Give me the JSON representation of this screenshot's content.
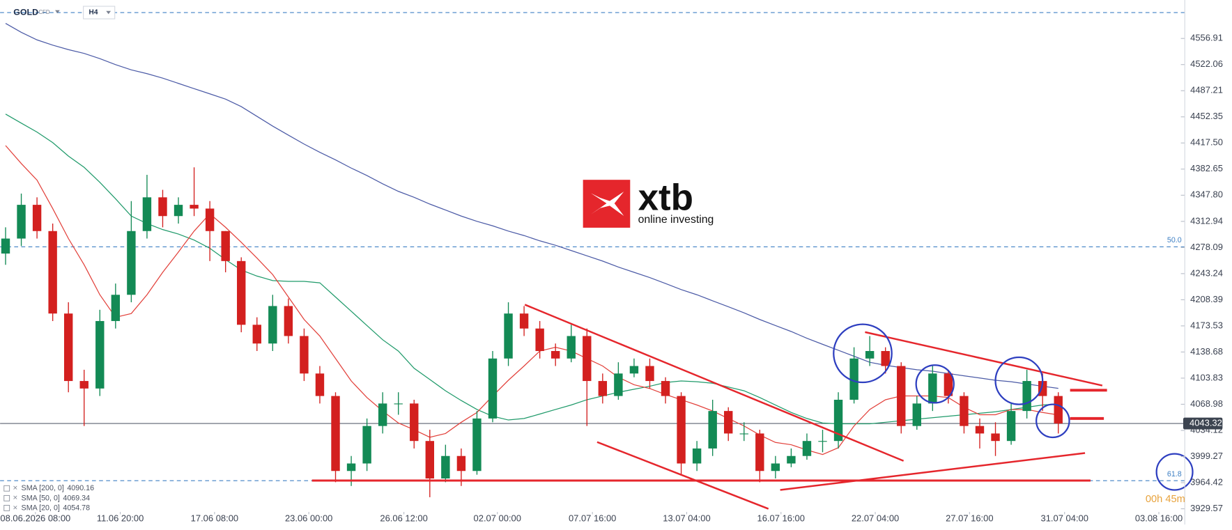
{
  "chart_data": {
    "type": "candlestick",
    "symbol": "GOLD",
    "instrument": "CFD",
    "timeframe": "H4",
    "brand": "xtb",
    "tagline": "online investing",
    "timer": "00h 45m",
    "last_price": 4043.32,
    "up_color": "#138a55",
    "down_color": "#d3201f",
    "open": [
      4270,
      4290,
      4335,
      4300,
      4190,
      4100,
      4090,
      4180,
      4215,
      4300,
      4345,
      4320,
      4335,
      4330,
      4300,
      4260,
      4175,
      4150,
      4200,
      4160,
      4110,
      4080,
      3980,
      3990,
      4040,
      4070,
      4070,
      4020,
      3970,
      4000,
      3980,
      4050,
      4130,
      4190,
      4170,
      4140,
      4130,
      4160,
      4100,
      4080,
      4110,
      4120,
      4100,
      4080,
      3990,
      4010,
      4060,
      4030,
      4030,
      3980,
      3990,
      4000,
      4020,
      4020,
      4075,
      4130,
      4140,
      4120,
      4040,
      4070,
      4110,
      4080,
      4040,
      4030,
      4020,
      4060,
      4100,
      4080
    ],
    "high": [
      4305,
      4350,
      4345,
      4310,
      4205,
      4115,
      4195,
      4230,
      4340,
      4375,
      4355,
      4345,
      4385,
      4340,
      4300,
      4265,
      4185,
      4215,
      4210,
      4170,
      4120,
      4085,
      4000,
      4050,
      4085,
      4085,
      4075,
      4035,
      4015,
      4010,
      4060,
      4140,
      4205,
      4200,
      4180,
      4150,
      4175,
      4170,
      4110,
      4125,
      4130,
      4130,
      4105,
      4085,
      4020,
      4075,
      4065,
      4045,
      4035,
      4000,
      4010,
      4030,
      4035,
      4085,
      4145,
      4160,
      4145,
      4125,
      4080,
      4120,
      4115,
      4085,
      4050,
      4045,
      4070,
      4115,
      4110,
      4085
    ],
    "low": [
      4255,
      4280,
      4290,
      4180,
      4085,
      4040,
      4080,
      4170,
      4205,
      4290,
      4305,
      4310,
      4320,
      4260,
      4245,
      4165,
      4140,
      4140,
      4150,
      4100,
      4070,
      3965,
      3960,
      3980,
      4030,
      4055,
      4010,
      3945,
      3965,
      3960,
      3975,
      4045,
      4120,
      4160,
      4130,
      4120,
      4125,
      4040,
      4070,
      4075,
      4105,
      4090,
      4070,
      3975,
      3980,
      4000,
      4020,
      4020,
      3965,
      3970,
      3985,
      3995,
      4005,
      4010,
      4070,
      4120,
      4110,
      4030,
      4035,
      4060,
      4070,
      4030,
      4010,
      4000,
      4015,
      4050,
      4060,
      4030
    ],
    "close": [
      4290,
      4335,
      4300,
      4190,
      4100,
      4090,
      4180,
      4215,
      4300,
      4345,
      4320,
      4335,
      4330,
      4300,
      4260,
      4175,
      4150,
      4200,
      4160,
      4110,
      4080,
      3980,
      3990,
      4040,
      4070,
      4070,
      4020,
      3970,
      4000,
      3980,
      4050,
      4130,
      4190,
      4170,
      4140,
      4130,
      4160,
      4100,
      4080,
      4110,
      4120,
      4100,
      4080,
      3990,
      4010,
      4060,
      4030,
      4030,
      3980,
      3990,
      4000,
      4020,
      4020,
      4075,
      4130,
      4140,
      4120,
      4040,
      4070,
      4110,
      4080,
      4040,
      4030,
      4020,
      4060,
      4100,
      4080,
      4043.32
    ],
    "series": [
      {
        "name": "SMA [200, 0]",
        "color": "#4b5aa6",
        "values": [
          4577,
          4565,
          4555,
          4548,
          4542,
          4537,
          4530,
          4522,
          4515,
          4510,
          4504,
          4497,
          4490,
          4483,
          4476,
          4466,
          4453,
          4440,
          4428,
          4416,
          4405,
          4395,
          4384,
          4374,
          4363,
          4353,
          4345,
          4336,
          4328,
          4320,
          4313,
          4307,
          4300,
          4294,
          4287,
          4281,
          4274,
          4267,
          4260,
          4252,
          4245,
          4238,
          4230,
          4222,
          4215,
          4207,
          4199,
          4191,
          4182,
          4174,
          4166,
          4157,
          4149,
          4141,
          4133,
          4125,
          4121,
          4118,
          4115,
          4113,
          4110,
          4107,
          4104,
          4101,
          4099,
          4096,
          4093,
          4090.16
        ]
      },
      {
        "name": "SMA [50, 0]",
        "color": "#1f9a6a",
        "values": [
          4456,
          4444,
          4432,
          4418,
          4400,
          4385,
          4365,
          4343,
          4320,
          4310,
          4302,
          4296,
          4288,
          4277,
          4262,
          4248,
          4240,
          4234,
          4233,
          4233,
          4231,
          4212,
          4193,
          4174,
          4155,
          4140,
          4117,
          4102,
          4087,
          4074,
          4062,
          4053,
          4048,
          4050,
          4056,
          4062,
          4068,
          4075,
          4080,
          4085,
          4089,
          4093,
          4098,
          4100,
          4099,
          4097,
          4092,
          4087,
          4078,
          4068,
          4058,
          4050,
          4044,
          4043,
          4043,
          4043,
          4045,
          4047,
          4049,
          4051,
          4053,
          4055,
          4057,
          4059,
          4062,
          4065,
          4068,
          4069.34
        ]
      },
      {
        "name": "SMA [20, 0]",
        "color": "#e2403a",
        "values": [
          4414,
          4390,
          4368,
          4330,
          4290,
          4255,
          4215,
          4185,
          4190,
          4215,
          4245,
          4272,
          4300,
          4323,
          4305,
          4285,
          4264,
          4242,
          4212,
          4182,
          4160,
          4130,
          4100,
          4078,
          4060,
          4044,
          4035,
          4025,
          4030,
          4045,
          4058,
          4080,
          4101,
          4120,
          4140,
          4145,
          4140,
          4130,
          4120,
          4105,
          4095,
          4090,
          4082,
          4075,
          4068,
          4060,
          4050,
          4040,
          4028,
          4018,
          4015,
          4008,
          4002,
          4011,
          4040,
          4062,
          4075,
          4080,
          4080,
          4080,
          4078,
          4065,
          4055,
          4055,
          4062,
          4062,
          4058,
          4054.78
        ]
      }
    ],
    "levels": [
      {
        "label": "50.0",
        "price": 4279
      },
      {
        "label": "61.8",
        "price": 3967
      }
    ],
    "xlim": [
      -0.35,
      74.65
    ],
    "xticks": [
      {
        "value": 1.9,
        "label": "08.06.2026 08:00"
      },
      {
        "value": 7.3,
        "label": "11.06 20:00"
      },
      {
        "value": 13.3,
        "label": "17.06 08:00"
      },
      {
        "value": 19.3,
        "label": "23.06 00:00"
      },
      {
        "value": 25.35,
        "label": "26.06 12:00"
      },
      {
        "value": 31.3,
        "label": "02.07 00:00"
      },
      {
        "value": 37.35,
        "label": "07.07 16:00"
      },
      {
        "value": 43.35,
        "label": "13.07 04:00"
      },
      {
        "value": 49.35,
        "label": "16.07 16:00"
      },
      {
        "value": 55.35,
        "label": "22.07 04:00"
      },
      {
        "value": 61.35,
        "label": "27.07 16:00"
      },
      {
        "value": 67.4,
        "label": "31.07 04:00"
      },
      {
        "value": 73.4,
        "label": "03.08 16:00"
      }
    ],
    "ylim": [
      3908.6,
      4608.2
    ],
    "yticks": [
      4556.91,
      4522.06,
      4487.21,
      4452.35,
      {
        "value": 4417.5,
        "label": "4417.50"
      },
      4382.65,
      {
        "value": 4347.8,
        "label": "4347.80"
      },
      4312.94,
      4278.09,
      4243.24,
      4208.39,
      4173.53,
      4138.68,
      4103.83,
      4068.98,
      4034.12,
      3999.27,
      3964.42,
      3929.57
    ]
  }
}
